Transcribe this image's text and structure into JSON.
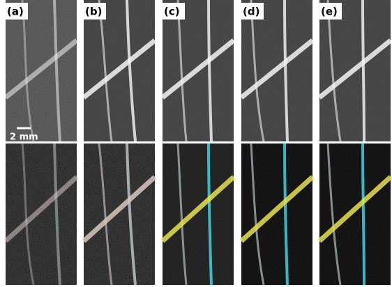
{
  "panels": [
    {
      "label": "(a)"
    },
    {
      "label": "(b)"
    },
    {
      "label": "(c)"
    },
    {
      "label": "(d)"
    },
    {
      "label": "(e)"
    }
  ],
  "scale_bar": "2 mm"
}
